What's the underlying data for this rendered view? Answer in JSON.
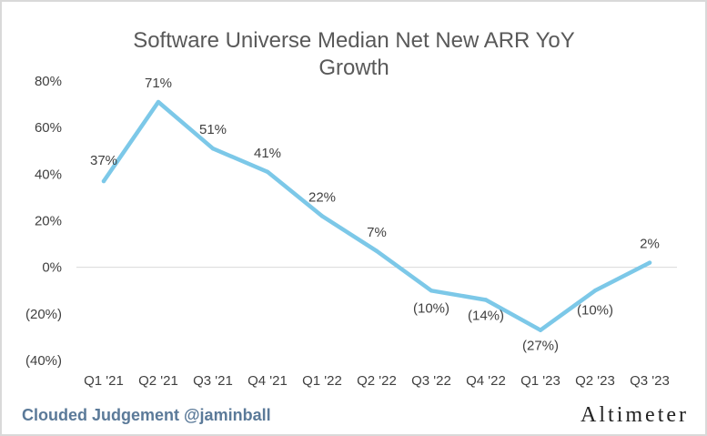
{
  "chart_data": {
    "type": "line",
    "title": "Software Universe Median Net New ARR YoY",
    "title_line2": "Growth",
    "categories": [
      "Q1 '21",
      "Q2 '21",
      "Q3 '21",
      "Q4 '21",
      "Q1 '22",
      "Q2 '22",
      "Q3 '22",
      "Q4 '22",
      "Q1 '23",
      "Q2 '23",
      "Q3 '23"
    ],
    "series": [
      {
        "values": [
          37,
          71,
          51,
          41,
          22,
          7,
          -10,
          -14,
          -27,
          -10,
          2
        ],
        "labels": [
          "37%",
          "71%",
          "51%",
          "41%",
          "22%",
          "7%",
          "(10%)",
          "(14%)",
          "(27%)",
          "(10%)",
          "2%"
        ]
      }
    ],
    "yticks": [
      80,
      60,
      40,
      20,
      0,
      -20,
      -40
    ],
    "ytick_labels": [
      "80%",
      "60%",
      "40%",
      "20%",
      "0%",
      "(20%)",
      "(40%)"
    ],
    "ylim": [
      -40,
      80
    ],
    "xlabel": "",
    "ylabel": "",
    "grid": false,
    "line_color": "#7cc8e8"
  },
  "footer": {
    "credit": "Clouded Judgement @jaminball",
    "brand": "Altimeter"
  }
}
